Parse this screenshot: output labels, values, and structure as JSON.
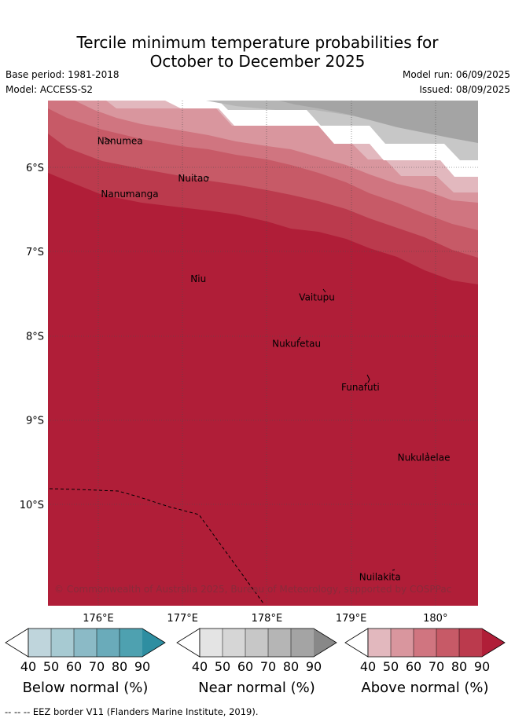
{
  "title": {
    "line1": "Tercile minimum temperature probabilities for",
    "line2": "October to December 2025"
  },
  "meta": {
    "base_period": "Base period: 1981-2018",
    "model": "Model: ACCESS-S2",
    "model_run": "Model run: 06/09/2025",
    "issued": "Issued: 08/09/2025"
  },
  "map": {
    "lat_ticks": [
      "6°S",
      "7°S",
      "8°S",
      "9°S",
      "10°S"
    ],
    "lon_ticks": [
      "176°E",
      "177°E",
      "178°E",
      "179°E",
      "180°"
    ],
    "places": [
      {
        "name": "Nanumea",
        "lon": 176.1,
        "lat": -5.68
      },
      {
        "name": "Nanumanga",
        "lon": 176.33,
        "lat": -6.29
      },
      {
        "name": "Nuitao",
        "lon": 177.3,
        "lat": -6.11
      },
      {
        "name": "Niu",
        "lon": 177.15,
        "lat": -7.28
      },
      {
        "name": "Vaitupu",
        "lon": 178.68,
        "lat": -7.47
      },
      {
        "name": "Nukufetau",
        "lon": 178.38,
        "lat": -8.03
      },
      {
        "name": "Funafuti",
        "lon": 179.2,
        "lat": -8.52
      },
      {
        "name": "Nukulaelae",
        "lon": 179.83,
        "lat": -9.38
      },
      {
        "name": "Nuilakita",
        "lon": 179.45,
        "lat": -10.77
      }
    ],
    "copyright": "© Commonwealth of Australia 2025, Bureau of Meteorology, supported by COSPPac",
    "colors": {
      "above": [
        "#e2b8be",
        "#d9969e",
        "#d07580",
        "#c75a67",
        "#bb3a4d",
        "#b01e38"
      ],
      "near": [
        "#e4e4e4",
        "#d6d6d6",
        "#c7c7c7",
        "#b5b5b5",
        "#a4a4a4",
        "#888888"
      ],
      "below": [
        "#bfd5dc",
        "#a7cad2",
        "#8bbac6",
        "#6aabba",
        "#4ea1b0",
        "#2e8ea1"
      ]
    }
  },
  "colorbars": [
    {
      "id": "below",
      "title": "Below normal (%)",
      "ticks": [
        "40",
        "50",
        "60",
        "70",
        "80",
        "90"
      ]
    },
    {
      "id": "near",
      "title": "Near normal (%)",
      "ticks": [
        "40",
        "50",
        "60",
        "70",
        "80",
        "90"
      ]
    },
    {
      "id": "above",
      "title": "Above normal (%)",
      "ticks": [
        "40",
        "50",
        "60",
        "70",
        "80",
        "90"
      ]
    }
  ],
  "legend": {
    "eez": "-- EEZ border V11 (Flanders Marine Institute, 2019).",
    "eez_symbol": "-- --"
  }
}
